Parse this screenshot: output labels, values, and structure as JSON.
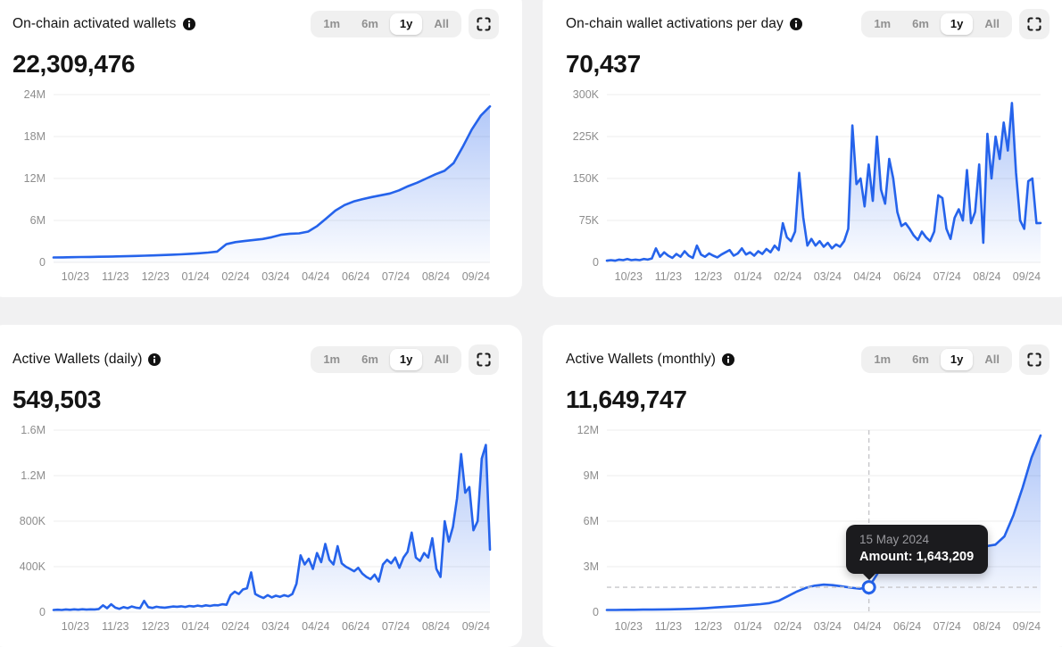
{
  "controls": {
    "ranges": [
      "1m",
      "6m",
      "1y",
      "All"
    ],
    "active_range": "1y"
  },
  "colors": {
    "accent": "#2563eb",
    "fill_top_opacity": 0.38,
    "fill_bottom_opacity": 0.02,
    "axis_text": "#8d8d8d",
    "grid_line": "#ececec",
    "crosshair": "#c7c7ca",
    "card_bg": "#ffffff",
    "page_bg": "#f1f1f2",
    "tooltip_bg": "#1b1b1e"
  },
  "chart_data": [
    {
      "type": "area",
      "title": "On-chain activated wallets",
      "current_value": "22,309,476",
      "x_labels": [
        "10/23",
        "11/23",
        "12/23",
        "01/24",
        "02/24",
        "03/24",
        "04/24",
        "06/24",
        "07/24",
        "08/24",
        "09/24"
      ],
      "y_ticks": [
        "0",
        "6M",
        "12M",
        "18M",
        "24M"
      ],
      "y_max": 24000000,
      "grid": true,
      "legend": "none",
      "values": [
        700000,
        720000,
        740000,
        760000,
        780000,
        800000,
        820000,
        850000,
        880000,
        920000,
        960000,
        1000000,
        1050000,
        1100000,
        1150000,
        1220000,
        1300000,
        1400000,
        1550000,
        2600000,
        2900000,
        3050000,
        3200000,
        3350000,
        3600000,
        3950000,
        4100000,
        4150000,
        4400000,
        5200000,
        6300000,
        7400000,
        8200000,
        8700000,
        9050000,
        9350000,
        9600000,
        9850000,
        10300000,
        10900000,
        11400000,
        12000000,
        12600000,
        13100000,
        14200000,
        16500000,
        19000000,
        21000000,
        22309476
      ]
    },
    {
      "type": "area",
      "title": "On-chain wallet activations per day",
      "current_value": "70,437",
      "x_labels": [
        "10/23",
        "11/23",
        "12/23",
        "01/24",
        "02/24",
        "03/24",
        "04/24",
        "06/24",
        "07/24",
        "08/24",
        "09/24"
      ],
      "y_ticks": [
        "0",
        "75K",
        "150K",
        "225K",
        "300K"
      ],
      "y_max": 300000,
      "grid": true,
      "legend": "none",
      "values": [
        3000,
        4000,
        3000,
        5000,
        4000,
        6000,
        4000,
        5000,
        4000,
        6000,
        5000,
        7000,
        25000,
        10000,
        18000,
        12000,
        8000,
        15000,
        10000,
        20000,
        12000,
        8000,
        30000,
        14000,
        10000,
        16000,
        12000,
        9000,
        14000,
        18000,
        22000,
        12000,
        16000,
        25000,
        14000,
        18000,
        12000,
        20000,
        15000,
        24000,
        18000,
        30000,
        22000,
        70000,
        45000,
        38000,
        55000,
        160000,
        80000,
        30000,
        42000,
        30000,
        38000,
        28000,
        35000,
        25000,
        32000,
        28000,
        38000,
        60000,
        245000,
        140000,
        150000,
        100000,
        175000,
        110000,
        225000,
        130000,
        105000,
        185000,
        150000,
        90000,
        65000,
        70000,
        60000,
        48000,
        40000,
        55000,
        45000,
        38000,
        55000,
        120000,
        115000,
        60000,
        42000,
        80000,
        95000,
        75000,
        165000,
        70000,
        90000,
        175000,
        35000,
        230000,
        150000,
        225000,
        185000,
        250000,
        200000,
        285000,
        160000,
        75000,
        60000,
        145000,
        150000,
        70000,
        70437
      ]
    },
    {
      "type": "area",
      "title": "Active Wallets (daily)",
      "current_value": "549,503",
      "x_labels": [
        "10/23",
        "11/23",
        "12/23",
        "01/24",
        "02/24",
        "03/24",
        "04/24",
        "06/24",
        "07/24",
        "08/24",
        "09/24"
      ],
      "y_ticks": [
        "0",
        "400K",
        "800K",
        "1.2M",
        "1.6M"
      ],
      "y_max": 1600000,
      "grid": true,
      "legend": "none",
      "values": [
        20000,
        22000,
        20000,
        24000,
        21000,
        25000,
        22000,
        26000,
        23000,
        25000,
        24000,
        28000,
        60000,
        35000,
        70000,
        40000,
        30000,
        45000,
        35000,
        50000,
        40000,
        35000,
        100000,
        45000,
        38000,
        48000,
        42000,
        40000,
        45000,
        50000,
        48000,
        52000,
        46000,
        55000,
        50000,
        58000,
        52000,
        60000,
        55000,
        62000,
        60000,
        70000,
        65000,
        150000,
        180000,
        160000,
        200000,
        210000,
        350000,
        160000,
        140000,
        125000,
        150000,
        130000,
        145000,
        135000,
        150000,
        140000,
        160000,
        250000,
        500000,
        420000,
        470000,
        380000,
        520000,
        440000,
        600000,
        460000,
        420000,
        580000,
        430000,
        400000,
        380000,
        360000,
        390000,
        340000,
        310000,
        290000,
        330000,
        270000,
        420000,
        460000,
        430000,
        480000,
        390000,
        480000,
        530000,
        700000,
        480000,
        450000,
        520000,
        480000,
        650000,
        380000,
        310000,
        800000,
        620000,
        750000,
        1000000,
        1390000,
        1050000,
        1100000,
        720000,
        800000,
        1350000,
        1470000,
        549503
      ]
    },
    {
      "type": "area",
      "title": "Active Wallets (monthly)",
      "current_value": "11,649,747",
      "x_labels": [
        "10/23",
        "11/23",
        "12/23",
        "01/24",
        "02/24",
        "03/24",
        "04/24",
        "06/24",
        "07/24",
        "08/24",
        "09/24"
      ],
      "y_ticks": [
        "0",
        "3M",
        "6M",
        "9M",
        "12M"
      ],
      "y_max": 12000000,
      "grid": true,
      "legend": "none",
      "values": [
        150000,
        150000,
        160000,
        160000,
        170000,
        170000,
        180000,
        190000,
        200000,
        220000,
        240000,
        270000,
        310000,
        350000,
        390000,
        430000,
        480000,
        530000,
        600000,
        750000,
        1050000,
        1350000,
        1600000,
        1750000,
        1820000,
        1780000,
        1700000,
        1620000,
        1550000,
        1643209,
        2600000,
        3600000,
        4100000,
        4050000,
        3850000,
        3650000,
        3400000,
        3280000,
        3350000,
        3550000,
        3900000,
        4200000,
        4350000,
        4450000,
        5000000,
        6400000,
        8200000,
        10200000,
        11649747
      ],
      "tooltip": {
        "date": "15 May 2024",
        "label": "Amount:",
        "value": "1,643,209",
        "amount": 1643209,
        "x_index": 29
      }
    }
  ]
}
